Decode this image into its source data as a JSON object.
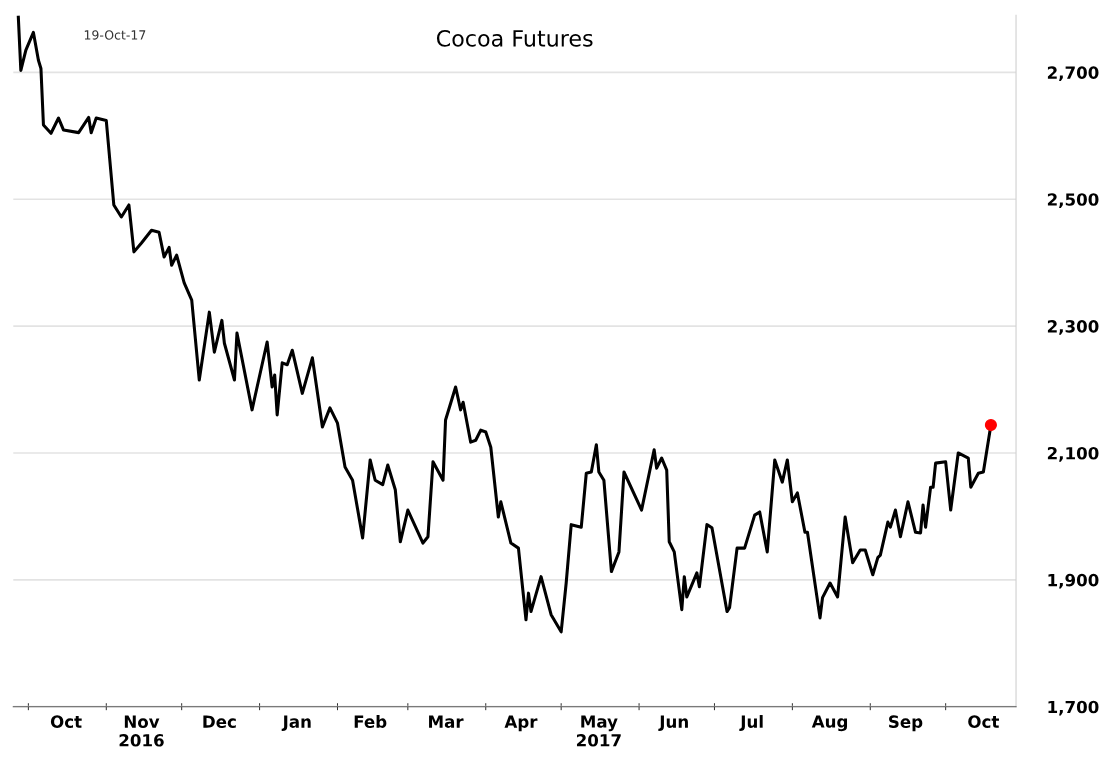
{
  "chart_data": {
    "type": "line",
    "title": "Cocoa Futures",
    "annotations": [
      "19-Oct-17"
    ],
    "x": [
      "2016-09-27",
      "2016-09-28",
      "2016-09-30",
      "2016-10-03",
      "2016-10-05",
      "2016-10-06",
      "2016-10-07",
      "2016-10-10",
      "2016-10-13",
      "2016-10-15",
      "2016-10-21",
      "2016-10-25",
      "2016-10-26",
      "2016-10-28",
      "2016-11-01",
      "2016-11-04",
      "2016-11-07",
      "2016-11-10",
      "2016-11-12",
      "2016-11-15",
      "2016-11-19",
      "2016-11-22",
      "2016-11-24",
      "2016-11-26",
      "2016-11-27",
      "2016-11-29",
      "2016-12-02",
      "2016-12-05",
      "2016-12-08",
      "2016-12-12",
      "2016-12-14",
      "2016-12-17",
      "2016-12-18",
      "2016-12-22",
      "2016-12-23",
      "2016-12-29",
      "2017-01-04",
      "2017-01-06",
      "2017-01-07",
      "2017-01-08",
      "2017-01-10",
      "2017-01-12",
      "2017-01-14",
      "2017-01-18",
      "2017-01-22",
      "2017-01-26",
      "2017-01-29",
      "2017-02-01",
      "2017-02-04",
      "2017-02-07",
      "2017-02-11",
      "2017-02-14",
      "2017-02-16",
      "2017-02-19",
      "2017-02-21",
      "2017-02-24",
      "2017-02-26",
      "2017-03-01",
      "2017-03-07",
      "2017-03-09",
      "2017-03-11",
      "2017-03-15",
      "2017-03-16",
      "2017-03-20",
      "2017-03-22",
      "2017-03-23",
      "2017-03-26",
      "2017-03-28",
      "2017-03-30",
      "2017-04-01",
      "2017-04-03",
      "2017-04-06",
      "2017-04-07",
      "2017-04-11",
      "2017-04-14",
      "2017-04-17",
      "2017-04-18",
      "2017-04-19",
      "2017-04-23",
      "2017-04-27",
      "2017-05-01",
      "2017-05-03",
      "2017-05-05",
      "2017-05-09",
      "2017-05-11",
      "2017-05-13",
      "2017-05-15",
      "2017-05-16",
      "2017-05-18",
      "2017-05-21",
      "2017-05-24",
      "2017-05-26",
      "2017-06-02",
      "2017-06-07",
      "2017-06-08",
      "2017-06-10",
      "2017-06-12",
      "2017-06-13",
      "2017-06-15",
      "2017-06-18",
      "2017-06-19",
      "2017-06-20",
      "2017-06-24",
      "2017-06-25",
      "2017-06-28",
      "2017-06-30",
      "2017-07-06",
      "2017-07-07",
      "2017-07-10",
      "2017-07-13",
      "2017-07-17",
      "2017-07-19",
      "2017-07-22",
      "2017-07-25",
      "2017-07-28",
      "2017-07-30",
      "2017-08-01",
      "2017-08-03",
      "2017-08-06",
      "2017-08-07",
      "2017-08-12",
      "2017-08-13",
      "2017-08-16",
      "2017-08-19",
      "2017-08-22",
      "2017-08-25",
      "2017-08-28",
      "2017-08-30",
      "2017-09-02",
      "2017-09-04",
      "2017-09-05",
      "2017-09-08",
      "2017-09-09",
      "2017-09-11",
      "2017-09-13",
      "2017-09-16",
      "2017-09-19",
      "2017-09-21",
      "2017-09-22",
      "2017-09-23",
      "2017-09-25",
      "2017-09-26",
      "2017-09-27",
      "2017-10-01",
      "2017-10-03",
      "2017-10-06",
      "2017-10-10",
      "2017-10-11",
      "2017-10-14",
      "2017-10-16",
      "2017-10-19"
    ],
    "series": [
      {
        "color": "#000000",
        "values": [
          2787,
          2703,
          2735,
          2763,
          2719,
          2706,
          2617,
          2604,
          2628,
          2609,
          2605,
          2629,
          2605,
          2628,
          2624,
          2491,
          2472,
          2491,
          2417,
          2431,
          2451,
          2448,
          2409,
          2424,
          2396,
          2412,
          2368,
          2341,
          2215,
          2322,
          2259,
          2309,
          2273,
          2215,
          2289,
          2168,
          2275,
          2204,
          2223,
          2160,
          2242,
          2239,
          2262,
          2194,
          2250,
          2141,
          2171,
          2147,
          2078,
          2057,
          1966,
          2089,
          2057,
          2050,
          2081,
          2042,
          1960,
          2010,
          1958,
          1968,
          2086,
          2057,
          2152,
          2204,
          2168,
          2180,
          2117,
          2120,
          2136,
          2133,
          2109,
          1999,
          2023,
          1958,
          1950,
          1837,
          1879,
          1850,
          1905,
          1845,
          1818,
          1895,
          1987,
          1983,
          2068,
          2070,
          2113,
          2070,
          2057,
          1913,
          1944,
          2070,
          2010,
          2105,
          2076,
          2092,
          2073,
          1960,
          1944,
          1853,
          1905,
          1873,
          1911,
          1889,
          1987,
          1982,
          1850,
          1856,
          1950,
          1950,
          2002,
          2007,
          1944,
          2089,
          2054,
          2089,
          2023,
          2037,
          1975,
          1975,
          1840,
          1872,
          1895,
          1873,
          1999,
          1927,
          1947,
          1947,
          1908,
          1935,
          1939,
          1991,
          1983,
          2010,
          1968,
          2023,
          1975,
          1974,
          2018,
          1983,
          2046,
          2046,
          2084,
          2086,
          2010,
          2100,
          2092,
          2046,
          2068,
          2070,
          2144
        ]
      },
      {
        "type": "scatter",
        "color": "#ff0000",
        "x": [
          "2017-10-19"
        ],
        "values": [
          2144
        ]
      }
    ],
    "xlim": [
      "2016-09-25",
      "2017-10-29"
    ],
    "xticks": [
      {
        "value": "2016-10-01",
        "label": null
      },
      {
        "value": "2016-10-16",
        "label": "Oct"
      },
      {
        "value": "2016-11-01",
        "label": null
      },
      {
        "value": "2016-11-15",
        "label": "Nov\n2016"
      },
      {
        "value": "2016-12-01",
        "label": null
      },
      {
        "value": "2016-12-16",
        "label": "Dec"
      },
      {
        "value": "2017-01-01",
        "label": null
      },
      {
        "value": "2017-01-16",
        "label": "Jan"
      },
      {
        "value": "2017-02-01",
        "label": null
      },
      {
        "value": "2017-02-14",
        "label": "Feb"
      },
      {
        "value": "2017-03-01",
        "label": null
      },
      {
        "value": "2017-03-16",
        "label": "Mar"
      },
      {
        "value": "2017-04-01",
        "label": null
      },
      {
        "value": "2017-04-15",
        "label": "Apr"
      },
      {
        "value": "2017-05-01",
        "label": null
      },
      {
        "value": "2017-05-16",
        "label": "May\n2017"
      },
      {
        "value": "2017-06-01",
        "label": null
      },
      {
        "value": "2017-06-15",
        "label": "Jun"
      },
      {
        "value": "2017-07-01",
        "label": null
      },
      {
        "value": "2017-07-16",
        "label": "Jul"
      },
      {
        "value": "2017-08-01",
        "label": null
      },
      {
        "value": "2017-08-16",
        "label": "Aug"
      },
      {
        "value": "2017-09-01",
        "label": null
      },
      {
        "value": "2017-09-15",
        "label": "Sep"
      },
      {
        "value": "2017-10-01",
        "label": null
      },
      {
        "value": "2017-10-16",
        "label": "Oct"
      }
    ],
    "ylim": [
      1700,
      2790
    ],
    "yticks": [
      {
        "value": 1700,
        "label": "1,700"
      },
      {
        "value": 1900,
        "label": "1,900"
      },
      {
        "value": 2100,
        "label": "2,100"
      },
      {
        "value": 2300,
        "label": "2,300"
      },
      {
        "value": 2500,
        "label": "2,500"
      },
      {
        "value": 2700,
        "label": "2,700"
      }
    ],
    "grid": "y",
    "legend": false
  }
}
